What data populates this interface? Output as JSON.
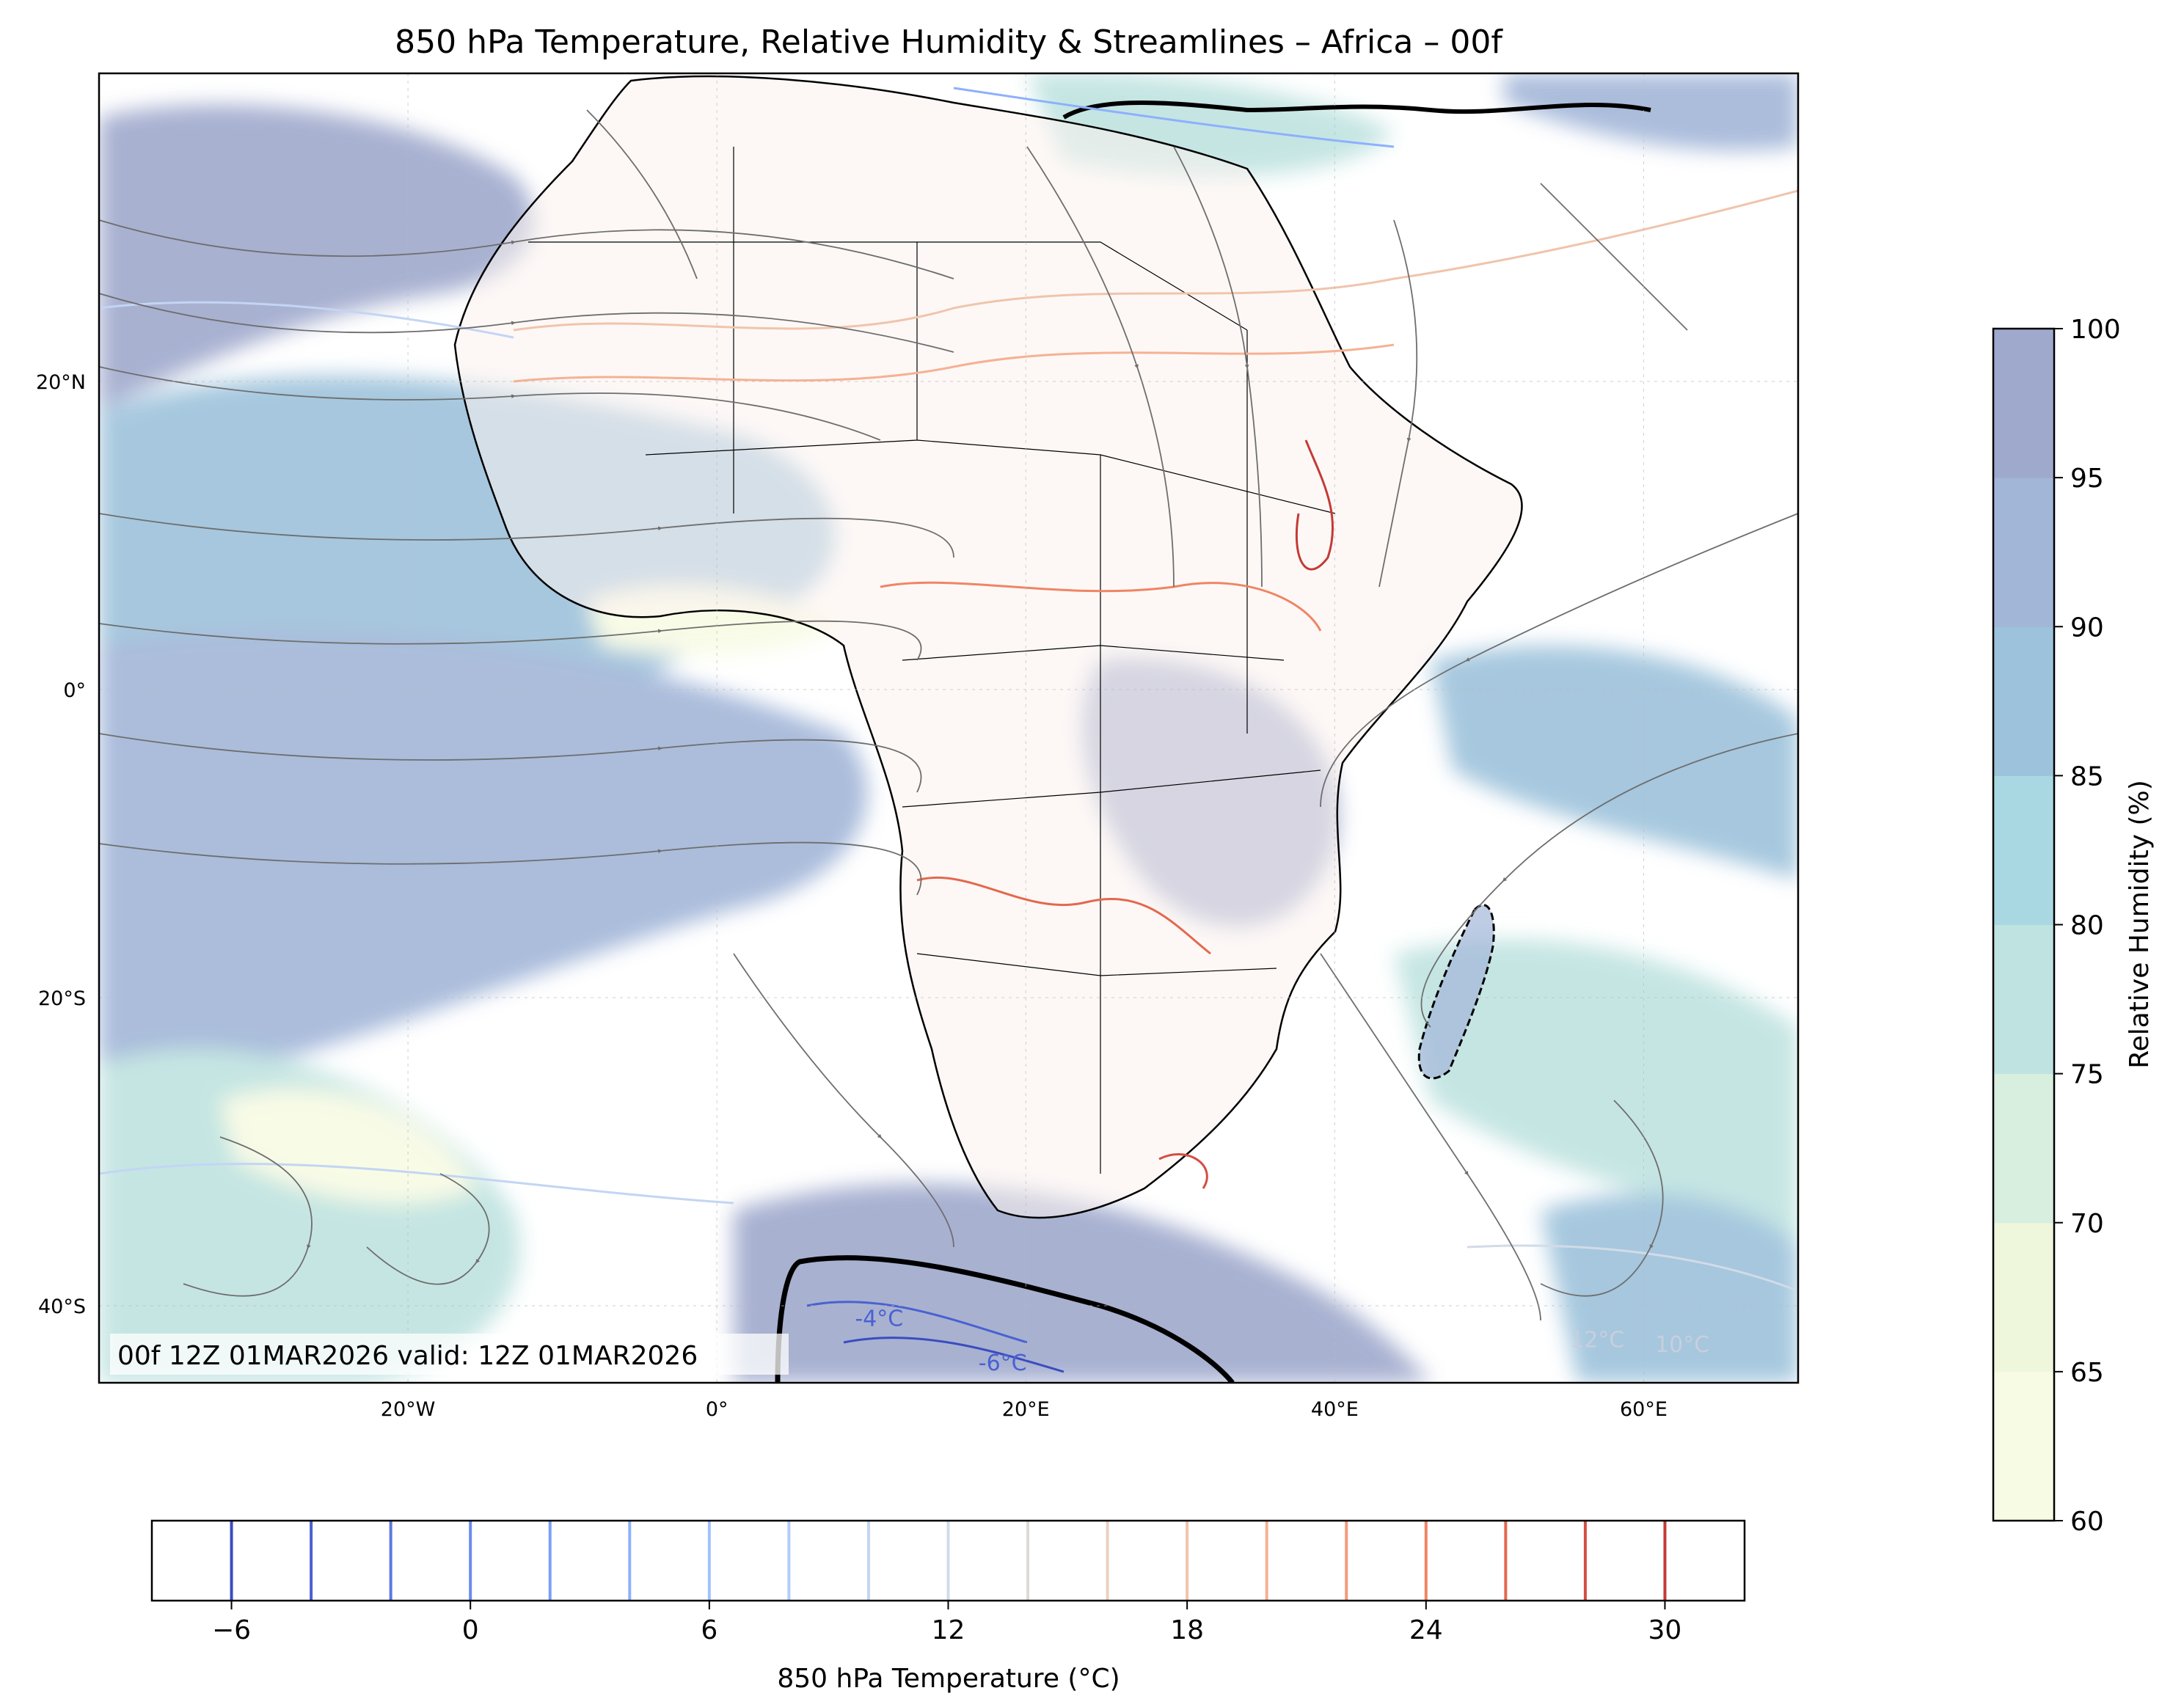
{
  "title": "850 hPa Temperature, Relative Humidity & Streamlines – Africa – 00f",
  "valid_text": "00f 12Z 01MAR2026 valid: 12Z 01MAR2026",
  "map": {
    "lon_range": [
      -40,
      70
    ],
    "lat_range": [
      -45,
      40
    ],
    "x_ticks": [
      {
        "lon": -20,
        "label": "20°W"
      },
      {
        "lon": 0,
        "label": "0°"
      },
      {
        "lon": 20,
        "label": "20°E"
      },
      {
        "lon": 40,
        "label": "40°E"
      },
      {
        "lon": 60,
        "label": "60°E"
      }
    ],
    "y_ticks": [
      {
        "lat": 20,
        "label": "20°N"
      },
      {
        "lat": 0,
        "label": "0°"
      },
      {
        "lat": -20,
        "label": "20°S"
      },
      {
        "lat": -40,
        "label": "40°S"
      }
    ],
    "contour_labels": [
      {
        "lon": 10.5,
        "lat": -41.3,
        "text": "-4°C"
      },
      {
        "lon": 18.5,
        "lat": -44.2,
        "text": "-6°C"
      },
      {
        "lon": 57,
        "lat": -42.7,
        "text": "12°C"
      },
      {
        "lon": 62.5,
        "lat": -43.0,
        "text": "10°C"
      }
    ]
  },
  "rh_colorbar": {
    "label": "Relative Humidity (%)",
    "range": [
      60,
      100
    ],
    "ticks": [
      60,
      65,
      70,
      75,
      80,
      85,
      90,
      95,
      100
    ],
    "colors": [
      "#f8fbe4",
      "#eef6dc",
      "#d8eedf",
      "#bfe3e0",
      "#a9d8e2",
      "#9dc2db",
      "#a2b6d8",
      "#9fa9cc"
    ]
  },
  "temp_colorbar": {
    "label": "850 hPa Temperature (°C)",
    "range": [
      -8,
      32
    ],
    "ticks": [
      -6,
      0,
      6,
      12,
      18,
      24,
      30
    ],
    "levels": [
      -6,
      -4,
      -2,
      0,
      2,
      4,
      6,
      8,
      10,
      12,
      14,
      16,
      18,
      20,
      22,
      24,
      26,
      28,
      30
    ],
    "colors": [
      "#3b4cc0",
      "#4961d2",
      "#5a78e0",
      "#6a8bef",
      "#7b9ff9",
      "#8db0fe",
      "#a0c1fe",
      "#b2cdfa",
      "#c3d5f4",
      "#d2dbe8",
      "#e1d9d4",
      "#ead1c2",
      "#f0c4ac",
      "#f5b193",
      "#f49a7b",
      "#ef8564",
      "#e4684e",
      "#d44e41",
      "#c43a35"
    ]
  }
}
